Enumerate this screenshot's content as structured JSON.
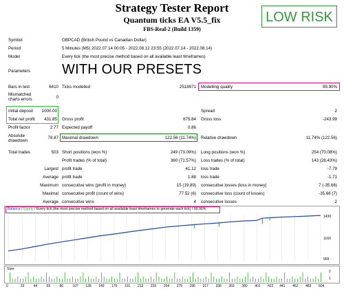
{
  "report": {
    "title": "Strategy Tester Report",
    "subtitle": "Quantum ticks EA V5.5_fix",
    "server": "FBS-Real-2 (Build 1359)",
    "badge": "LOW RISK",
    "overlay": "WITH OUR PRESETS"
  },
  "settings": {
    "symbol_label": "Symbol",
    "symbol_value": "GBPCAD (British Pound vs Canadian Dollar)",
    "period_label": "Period",
    "period_value": "5 Minutes (M5) 2022.07.14 00:05 - 2022.08.12 23:55 (2022.07.14 - 2022.08.14)",
    "model_label": "Model",
    "model_value": "Every tick (the most precise method based on all available least timeframes)",
    "parameters_label": "Parameters"
  },
  "stats": {
    "bars_label": "Bars in test",
    "bars_value": "6410",
    "ticks_label": "Ticks modelled",
    "ticks_value": "2518971",
    "quality_label": "Modelling quality",
    "quality_value": "99.90%",
    "mismatch_label1": "Mismatched",
    "mismatch_label2": "charts errors",
    "mismatch_value": "0",
    "deposit_label": "Initial deposit",
    "deposit_value": "1000.00",
    "spread_label": "Spread",
    "spread_value": "2",
    "netprofit_label": "Total net profit",
    "netprofit_value": "431.85",
    "grossprofit_label": "Gross profit",
    "grossprofit_value": "675.84",
    "grossloss_label": "Gross loss",
    "grossloss_value": "-243.99",
    "pf_label": "Profit factor",
    "pf_value": "2.77",
    "payoff_label": "Expected payoff",
    "payoff_value": "0.86",
    "absdd_label1": "Absolute",
    "absdd_label2": "drawdown",
    "absdd_value": "78.87",
    "maxdd_label": "Maximal drawdown",
    "maxdd_value": "122.56 (11.74%)",
    "reldd_label": "Relative drawdown",
    "reldd_value": "11.74% (122.56)",
    "trades_label": "Total trades",
    "trades_value": "503",
    "short_label": "Short positions (won %)",
    "short_value": "249 (73.09%)",
    "long_label": "Long positions (won %)",
    "long_value": "254 (70.08%)",
    "profit_trades_label": "Profit trades (% of total)",
    "profit_trades_value": "360 (71.57%)",
    "loss_trades_label": "Loss trades (% of total)",
    "loss_trades_value": "143 (28.43%)",
    "largest_label": "Largest",
    "lpt_label": "profit trade",
    "lpt_value": "41.12",
    "llt_label": "loss trade",
    "llt_value": "-7.79",
    "average_label": "Average",
    "apt_label": "profit trade",
    "apt_value": "1.88",
    "alt_label": "loss trade",
    "alt_value": "-1.71",
    "maximum_label": "Maximum",
    "mcw_label": "consecutive wins (profit in money)",
    "mcw_value": "15 (19.89)",
    "mcl_label": "consecutive losses (loss in money)",
    "mcl_value": "7 (-35.66)",
    "maximal_label": "Maximal",
    "mcp_label": "consecutive profit (count of wins)",
    "mcp_value": "77.52 (6)",
    "mcloss_label": "consecutive loss (count of losses)",
    "mcloss_value": "-35.66 (7)",
    "average2_label": "Average",
    "acw_label": "consecutive wins",
    "acw_value": "4",
    "acl_label": "consecutive losses",
    "acl_value": "2"
  },
  "chart_data": {
    "type": "line",
    "legend_balance": "Balance",
    "legend_sep": " / ",
    "legend_equity": "Equity",
    "legend_rest": " / Every tick (the most precise method based on all available least timeframes to generate each tick)",
    "legend_quality": " / 99.90%",
    "y_ticks": [
      "1430",
      "1169",
      "909"
    ],
    "ylim": [
      880,
      1450
    ],
    "x_ticks": [
      "0",
      "23",
      "44",
      "65",
      "86",
      "107",
      "128",
      "149",
      "170",
      "191",
      "212",
      "233",
      "254",
      "275",
      "296",
      "317",
      "338",
      "359",
      "380",
      "401",
      "422",
      "441",
      "462",
      "483",
      "504"
    ],
    "balance_color": "#1f3fbf",
    "equity_color": "#2eaa2e",
    "size_label": "Size",
    "size_ticks": [
      "2",
      "1"
    ],
    "series": [
      {
        "name": "Balance",
        "x": [
          0,
          23,
          44,
          65,
          86,
          107,
          128,
          149,
          170,
          191,
          212,
          233,
          254,
          275,
          296,
          317,
          338,
          359,
          380,
          401,
          410,
          422,
          441,
          462,
          483,
          504
        ],
        "values": [
          1000,
          1025,
          1055,
          1085,
          1110,
          1135,
          1160,
          1185,
          1205,
          1228,
          1250,
          1270,
          1290,
          1305,
          1318,
          1330,
          1340,
          1355,
          1365,
          1372,
          1398,
          1405,
          1412,
          1418,
          1425,
          1432
        ]
      }
    ],
    "equity_dips": [
      [
        300,
        1280
      ],
      [
        340,
        1300
      ],
      [
        410,
        1330
      ],
      [
        422,
        1370
      ]
    ]
  }
}
